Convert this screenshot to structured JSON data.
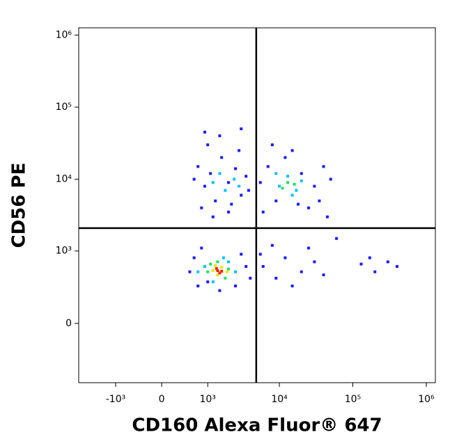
{
  "chart_data": {
    "type": "scatter",
    "x_label": "CD160 Alexa Fluor® 647",
    "y_label": "CD56 PE",
    "xscale": "biexponential",
    "yscale": "biexponential",
    "xlim": [
      -3350,
      1330000
    ],
    "ylim": [
      -650,
      1260000
    ],
    "xticks": [
      {
        "value": -1000,
        "label": "-10³"
      },
      0,
      {
        "value": 1000,
        "label": "10³"
      },
      {
        "value": 10000,
        "label": "10⁴"
      },
      {
        "value": 100000,
        "label": "10⁵"
      },
      {
        "value": 1000000,
        "label": "10⁶"
      }
    ],
    "yticks": [
      0,
      {
        "value": 1000,
        "label": "10³"
      },
      {
        "value": 10000,
        "label": "10⁴"
      },
      {
        "value": 100000,
        "label": "10⁵"
      },
      {
        "value": 1000000,
        "label": "10⁶"
      }
    ],
    "gates": {
      "x": 4830,
      "y": 2090
    },
    "series": [
      {
        "color": "#1a1aff",
        "x": [
          700,
          900,
          1100,
          1300,
          1600,
          2000,
          2500,
          3000,
          3500,
          800,
          1200,
          2200,
          2800,
          1000,
          600,
          3800,
          1500,
          3000,
          900,
          2000,
          5500,
          7000,
          9000,
          12000,
          20000,
          30000,
          40000,
          25000,
          6000,
          15000,
          35000,
          50000,
          8000,
          45000,
          18000,
          6000,
          9000,
          12000,
          20000,
          30000,
          40000,
          15000,
          8000,
          25000,
          5500,
          500,
          700,
          2500,
          3500,
          600,
          3000,
          1500,
          800,
          4000,
          1000,
          130000,
          200000,
          300000,
          170000,
          400000,
          60000
        ],
        "y": [
          15000,
          8000,
          12000,
          5000,
          20000,
          9000,
          14000,
          6000,
          11000,
          4000,
          3000,
          4500,
          25000,
          30000,
          10000,
          7000,
          40000,
          50000,
          45000,
          3500,
          9000,
          15000,
          5000,
          20000,
          12000,
          8000,
          15000,
          4000,
          3500,
          25000,
          5000,
          10000,
          30000,
          3000,
          4500,
          600,
          400,
          800,
          500,
          700,
          450,
          300,
          1200,
          1100,
          900,
          500,
          300,
          300,
          600,
          800,
          900,
          250,
          1100,
          400,
          350,
          650,
          500,
          700,
          800,
          600,
          1500
        ]
      },
      {
        "color": "#00c0ff",
        "x": [
          1200,
          1800,
          2400,
          1500,
          2800,
          10000,
          13000,
          17000,
          20000,
          9000,
          15000,
          900,
          2000,
          1200,
          2500,
          1700,
          700
        ],
        "y": [
          9000,
          7000,
          10000,
          12000,
          8000,
          8000,
          11000,
          7000,
          9500,
          12000,
          6000,
          600,
          700,
          350,
          500,
          800,
          500
        ]
      },
      {
        "color": "#20e060",
        "x": [
          13000,
          16000,
          11000,
          1000,
          2000,
          1400,
          1800,
          1100
        ],
        "y": [
          9000,
          8500,
          7500,
          500,
          550,
          700,
          400,
          650
        ]
      },
      {
        "color": "#e8e800",
        "x": [
          1200,
          1600,
          1400,
          1900,
          1300
        ],
        "y": [
          520,
          580,
          450,
          500,
          620
        ]
      },
      {
        "color": "#ff2000",
        "x": [
          1400,
          1500,
          1350,
          1600
        ],
        "y": [
          520,
          480,
          560,
          510
        ]
      }
    ]
  }
}
